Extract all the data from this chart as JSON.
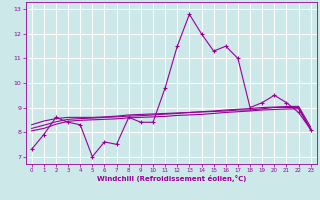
{
  "xlabel": "Windchill (Refroidissement éolien,°C)",
  "x": [
    0,
    1,
    2,
    3,
    4,
    5,
    6,
    7,
    8,
    9,
    10,
    11,
    12,
    13,
    14,
    15,
    16,
    17,
    18,
    19,
    20,
    21,
    22,
    23
  ],
  "line1": [
    7.3,
    7.9,
    8.6,
    8.4,
    8.3,
    7.0,
    7.6,
    7.5,
    8.6,
    8.4,
    8.4,
    9.8,
    11.5,
    12.8,
    12.0,
    11.3,
    11.5,
    11.0,
    9.0,
    9.2,
    9.5,
    9.2,
    8.8,
    8.1
  ],
  "line2": [
    8.3,
    8.45,
    8.55,
    8.6,
    8.6,
    8.6,
    8.62,
    8.65,
    8.7,
    8.72,
    8.74,
    8.76,
    8.78,
    8.8,
    8.82,
    8.84,
    8.86,
    8.9,
    8.9,
    8.95,
    9.0,
    9.0,
    9.0,
    8.1
  ],
  "line3": [
    8.15,
    8.28,
    8.42,
    8.52,
    8.55,
    8.57,
    8.6,
    8.62,
    8.65,
    8.67,
    8.7,
    8.73,
    8.76,
    8.8,
    8.83,
    8.86,
    8.9,
    8.93,
    8.96,
    9.0,
    9.02,
    9.04,
    9.05,
    8.2
  ],
  "line4": [
    8.05,
    8.15,
    8.32,
    8.44,
    8.48,
    8.5,
    8.52,
    8.54,
    8.58,
    8.6,
    8.62,
    8.64,
    8.68,
    8.7,
    8.72,
    8.76,
    8.8,
    8.83,
    8.86,
    8.9,
    8.92,
    8.94,
    8.95,
    8.1
  ],
  "color_main": "#990099",
  "background": "#cce8e8",
  "grid_color": "#ffffff",
  "ylim": [
    6.7,
    13.3
  ],
  "xlim": [
    -0.5,
    23.5
  ],
  "yticks": [
    7,
    8,
    9,
    10,
    11,
    12,
    13
  ],
  "xticks": [
    0,
    1,
    2,
    3,
    4,
    5,
    6,
    7,
    8,
    9,
    10,
    11,
    12,
    13,
    14,
    15,
    16,
    17,
    18,
    19,
    20,
    21,
    22,
    23
  ]
}
